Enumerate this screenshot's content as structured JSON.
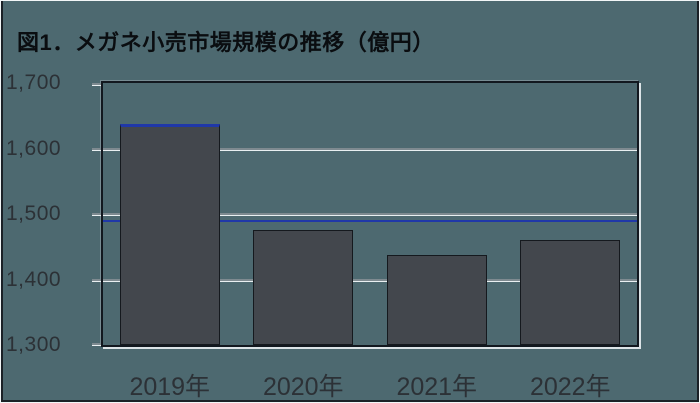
{
  "figure": {
    "title": "図1．メガネ小売市場規模の推移（億円）"
  },
  "chart_data": {
    "type": "bar",
    "title": "図1．メガネ小売市場規模の推移（億円）",
    "categories": [
      "2019年",
      "2020年",
      "2021年",
      "2022年"
    ],
    "values": [
      1638,
      1476,
      1437,
      1461
    ],
    "unit": "億円",
    "xlabel": "",
    "ylabel": "",
    "ylim": [
      1300,
      1700
    ],
    "yticks": [
      {
        "value": 1700,
        "label": "1,700"
      },
      {
        "value": 1600,
        "label": "1,600"
      },
      {
        "value": 1500,
        "label": "1,500"
      },
      {
        "value": 1400,
        "label": "1,400"
      },
      {
        "value": 1300,
        "label": "1,300"
      }
    ],
    "reference_line": {
      "value": 1489
    },
    "grid": true,
    "legend": "none"
  },
  "colors": {
    "background": "#4d6970",
    "bar_fill": "#43474d",
    "bar_border": "#15191e",
    "reference_line": "#2038a8",
    "grid_line": "#7e8a90",
    "grid_highlight": "#e9eff1",
    "plot_border": "#12181f",
    "tick_text": "#2c3136",
    "title_text": "#0a0d10",
    "frame_outer": "#f2f6f7",
    "frame_inner": "#1b2127"
  }
}
